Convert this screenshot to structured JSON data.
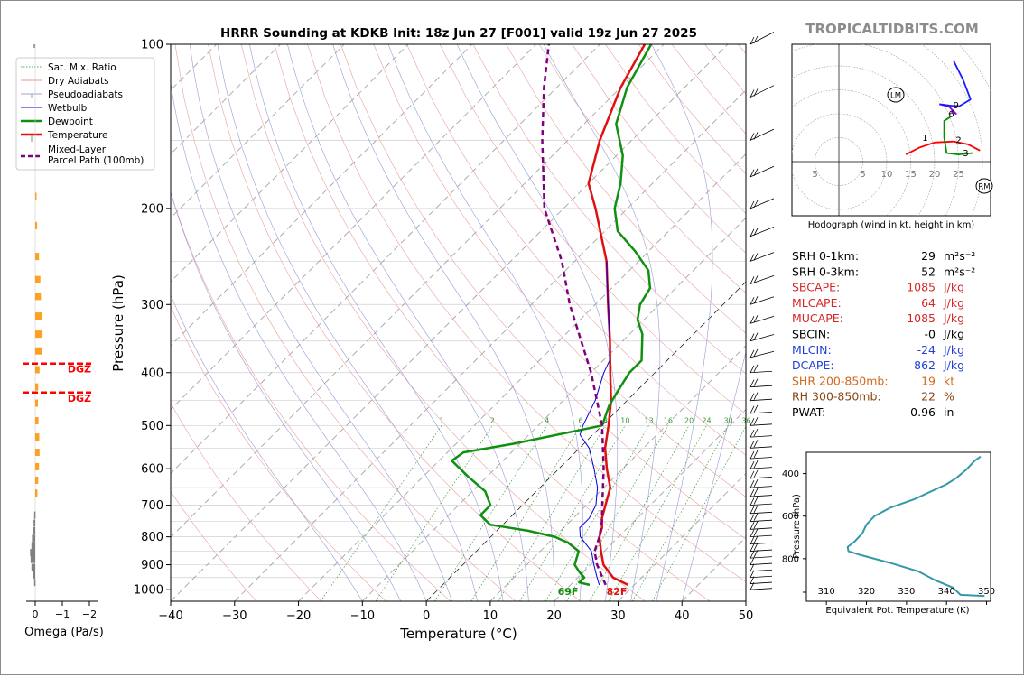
{
  "title": "HRRR Sounding at KDKB Init: 18z Jun 27 [F001] valid 19z Jun 27 2025",
  "watermark": "TROPICALTIDBITS.COM",
  "chart_data": [
    {
      "id": "skewt",
      "type": "line",
      "xlabel": "Temperature (°C)",
      "ylabel": "Pressure (hPa)",
      "xlim": [
        -40,
        50
      ],
      "ylim": [
        1050,
        100
      ],
      "y_scale": "log",
      "skew": true,
      "x_ticks": [
        "−40",
        "−30",
        "−20",
        "−10",
        "0",
        "10",
        "20",
        "30",
        "40",
        "50"
      ],
      "y_ticks": [
        "100",
        "200",
        "300",
        "400",
        "500",
        "600",
        "700",
        "800",
        "900",
        "1000"
      ],
      "legend": {
        "placement": "top-left",
        "entries": [
          {
            "label": "Sat. Mix. Ratio",
            "color": "#2a8a2a",
            "style": "dotted"
          },
          {
            "label": "Dry Adiabats",
            "color": "#e07070",
            "style": "solid"
          },
          {
            "label": "Pseudoadiabats",
            "color": "#8080c0",
            "style": "solid"
          },
          {
            "label": "Wetbulb",
            "color": "#0000e0",
            "style": "solid"
          },
          {
            "label": "Dewpoint",
            "color": "#109010",
            "style": "solid"
          },
          {
            "label": "Temperature",
            "color": "#e01010",
            "style": "solid"
          },
          {
            "label": "Mixed-Layer Parcel Path (100mb)",
            "color": "#800080",
            "style": "dashed"
          }
        ]
      },
      "mixing_ratio_labels": [
        "1",
        "2",
        "4",
        "6",
        "8",
        "10",
        "13",
        "16",
        "20",
        "24",
        "30",
        "36"
      ],
      "surface_labels": {
        "dewpoint": "69F",
        "temperature": "82F"
      },
      "series": [
        {
          "name": "Temperature",
          "color": "#e01010",
          "points": [
            [
              980,
              29
            ],
            [
              950,
              25.5
            ],
            [
              900,
              22
            ],
            [
              850,
              19.5
            ],
            [
              800,
              17
            ],
            [
              770,
              16
            ],
            [
              740,
              14.5
            ],
            [
              700,
              13
            ],
            [
              650,
              11
            ],
            [
              600,
              7.5
            ],
            [
              550,
              4
            ],
            [
              500,
              1
            ],
            [
              450,
              -2.5
            ],
            [
              400,
              -7
            ],
            [
              350,
              -12
            ],
            [
              300,
              -18
            ],
            [
              250,
              -25
            ],
            [
              200,
              -35
            ],
            [
              180,
              -40
            ],
            [
              150,
              -45
            ],
            [
              120,
              -50
            ],
            [
              100,
              -53
            ]
          ]
        },
        {
          "name": "Dewpoint",
          "color": "#109010",
          "points": [
            [
              980,
              23
            ],
            [
              970,
              21
            ],
            [
              950,
              21
            ],
            [
              930,
              19.5
            ],
            [
              900,
              17.5
            ],
            [
              850,
              16
            ],
            [
              820,
              13
            ],
            [
              800,
              10
            ],
            [
              780,
              5
            ],
            [
              760,
              -2
            ],
            [
              730,
              -5
            ],
            [
              700,
              -5
            ],
            [
              660,
              -8
            ],
            [
              620,
              -13
            ],
            [
              580,
              -18
            ],
            [
              560,
              -17.5
            ],
            [
              540,
              -11
            ],
            [
              500,
              0
            ],
            [
              460,
              -2
            ],
            [
              430,
              -3
            ],
            [
              400,
              -4
            ],
            [
              380,
              -4
            ],
            [
              340,
              -8
            ],
            [
              320,
              -11
            ],
            [
              300,
              -13
            ],
            [
              280,
              -14
            ],
            [
              260,
              -17
            ],
            [
              240,
              -22
            ],
            [
              220,
              -28
            ],
            [
              200,
              -32
            ],
            [
              180,
              -35
            ],
            [
              160,
              -39
            ],
            [
              140,
              -45
            ],
            [
              120,
              -49
            ],
            [
              100,
              -52
            ]
          ]
        },
        {
          "name": "Wetbulb",
          "color": "#0000e0",
          "points": [
            [
              980,
              24.5
            ],
            [
              950,
              23
            ],
            [
              900,
              20.5
            ],
            [
              850,
              18
            ],
            [
              800,
              14
            ],
            [
              770,
              12.5
            ],
            [
              740,
              12.5
            ],
            [
              700,
              11.5
            ],
            [
              650,
              9
            ],
            [
              600,
              5.5
            ],
            [
              550,
              1.5
            ],
            [
              520,
              -2
            ],
            [
              500,
              -3
            ],
            [
              450,
              -5
            ],
            [
              400,
              -8
            ],
            [
              380,
              -9
            ],
            [
              350,
              -12
            ],
            [
              300,
              -18
            ],
            [
              250,
              -25
            ]
          ]
        },
        {
          "name": "Mixed-Layer Parcel Path (100mb)",
          "color": "#800080",
          "style": "dashed",
          "points": [
            [
              980,
              25.5
            ],
            [
              900,
              21
            ],
            [
              850,
              18.5
            ],
            [
              800,
              17
            ],
            [
              750,
              15
            ],
            [
              700,
              12.5
            ],
            [
              600,
              7
            ],
            [
              500,
              0
            ],
            [
              400,
              -10
            ],
            [
              300,
              -24
            ],
            [
              250,
              -32
            ],
            [
              200,
              -43
            ],
            [
              150,
              -54
            ],
            [
              120,
              -62
            ],
            [
              100,
              -68
            ]
          ]
        }
      ]
    },
    {
      "id": "omega",
      "type": "bar",
      "xlabel": "Omega (Pa/s)",
      "x_ticks": [
        "0",
        "−1",
        "−2"
      ],
      "dgz_label": "DGZ",
      "dgz_pressures": [
        385,
        435
      ],
      "bars": [
        {
          "p": 190,
          "v": -0.05,
          "c": "#ffa020"
        },
        {
          "p": 215,
          "v": -0.07,
          "c": "#ffa020"
        },
        {
          "p": 245,
          "v": -0.14,
          "c": "#ffa020"
        },
        {
          "p": 270,
          "v": -0.19,
          "c": "#ffa020"
        },
        {
          "p": 290,
          "v": -0.21,
          "c": "#ffa020"
        },
        {
          "p": 315,
          "v": -0.26,
          "c": "#ffa020"
        },
        {
          "p": 340,
          "v": -0.27,
          "c": "#ffa020"
        },
        {
          "p": 365,
          "v": -0.24,
          "c": "#ffa020"
        },
        {
          "p": 395,
          "v": -0.16,
          "c": "#ffa020"
        },
        {
          "p": 425,
          "v": -0.11,
          "c": "#ffa020"
        },
        {
          "p": 455,
          "v": -0.1,
          "c": "#ffa020"
        },
        {
          "p": 490,
          "v": -0.12,
          "c": "#ffa020"
        },
        {
          "p": 525,
          "v": -0.15,
          "c": "#ffa020"
        },
        {
          "p": 560,
          "v": -0.16,
          "c": "#ffa020"
        },
        {
          "p": 595,
          "v": -0.14,
          "c": "#ffa020"
        },
        {
          "p": 630,
          "v": -0.11,
          "c": "#ffa020"
        },
        {
          "p": 665,
          "v": -0.08,
          "c": "#ffa020"
        },
        {
          "p": 730,
          "v": 0.04,
          "c": "#808080"
        },
        {
          "p": 755,
          "v": 0.06,
          "c": "#808080"
        },
        {
          "p": 780,
          "v": 0.08,
          "c": "#808080"
        },
        {
          "p": 805,
          "v": 0.12,
          "c": "#808080"
        },
        {
          "p": 830,
          "v": 0.14,
          "c": "#808080"
        },
        {
          "p": 855,
          "v": 0.19,
          "c": "#808080"
        },
        {
          "p": 880,
          "v": 0.17,
          "c": "#808080"
        },
        {
          "p": 910,
          "v": 0.14,
          "c": "#808080"
        },
        {
          "p": 940,
          "v": 0.1,
          "c": "#808080"
        },
        {
          "p": 970,
          "v": 0.04,
          "c": "#808080"
        }
      ]
    },
    {
      "id": "hodograph",
      "type": "line",
      "xlabel": "Hodograph (wind in kt, height in km)",
      "ring_labels": [
        "5",
        "5",
        "10",
        "15",
        "20",
        "25"
      ],
      "markers": {
        "left_mover": "LM",
        "right_mover": "RM"
      },
      "height_labels": [
        "1",
        "2",
        "3",
        "6",
        "9"
      ],
      "series": [
        {
          "name": "0-1 km",
          "color": "#ff0000",
          "points": [
            [
              14,
              1.5
            ],
            [
              17,
              3
            ],
            [
              20,
              4
            ],
            [
              24,
              4.2
            ]
          ]
        },
        {
          "name": "1-3 km",
          "color": "#ff0000",
          "points": [
            [
              24,
              4.2
            ],
            [
              27,
              3.6
            ],
            [
              29.5,
              2.3
            ]
          ]
        },
        {
          "name": "3-6 km",
          "color": "#009000",
          "points": [
            [
              28,
              1.8
            ],
            [
              25,
              1.5
            ],
            [
              22.5,
              1.8
            ],
            [
              22,
              5
            ],
            [
              22,
              8.5
            ],
            [
              23.5,
              9.5
            ]
          ]
        },
        {
          "name": "6-9 km",
          "color": "#9000d0",
          "points": [
            [
              23.5,
              10.5
            ],
            [
              24.5,
              10
            ],
            [
              23,
              11.5
            ],
            [
              21,
              12
            ]
          ]
        },
        {
          "name": "9+ km",
          "color": "#1a1aff",
          "points": [
            [
              21,
              12
            ],
            [
              25,
              11.5
            ],
            [
              27.5,
              13
            ],
            [
              26,
              17
            ],
            [
              24,
              21
            ]
          ]
        }
      ]
    },
    {
      "id": "theta_e",
      "type": "line",
      "xlabel": "Equivalent Pot. Temperature (K)",
      "ylabel": "Pressure (hPa)",
      "x_ticks": [
        "310",
        "320",
        "330",
        "340",
        "350"
      ],
      "y_ticks": [
        "400",
        "600",
        "800"
      ],
      "xlim": [
        305,
        351
      ],
      "ylim": [
        1000,
        300
      ],
      "series": [
        {
          "name": "theta-e",
          "color": "#3399aa",
          "points": [
            [
              349.5,
              975
            ],
            [
              347,
              973
            ],
            [
              343.5,
              970
            ],
            [
              341.5,
              935
            ],
            [
              337,
              900
            ],
            [
              333,
              860
            ],
            [
              326,
              820
            ],
            [
              318,
              780
            ],
            [
              315.5,
              765
            ],
            [
              315.3,
              745
            ],
            [
              317,
              720
            ],
            [
              319,
              680
            ],
            [
              320,
              640
            ],
            [
              322,
              600
            ],
            [
              326,
              560
            ],
            [
              332,
              520
            ],
            [
              340,
              450
            ],
            [
              342.5,
              420
            ],
            [
              345,
              380
            ],
            [
              347,
              340
            ],
            [
              348.5,
              320
            ]
          ]
        }
      ]
    }
  ],
  "indices": [
    {
      "label": "SRH 0-1km:",
      "value": "29",
      "unit": "m²s⁻²",
      "color": "#000000"
    },
    {
      "label": "SRH 0-3km:",
      "value": "52",
      "unit": "m²s⁻²",
      "color": "#000000"
    },
    {
      "label": "SBCAPE:",
      "value": "1085",
      "unit": "J/kg",
      "color": "#d62728"
    },
    {
      "label": "MLCAPE:",
      "value": "64",
      "unit": "J/kg",
      "color": "#d62728"
    },
    {
      "label": "MUCAPE:",
      "value": "1085",
      "unit": "J/kg",
      "color": "#d62728"
    },
    {
      "label": "SBCIN:",
      "value": "-0",
      "unit": "J/kg",
      "color": "#000000"
    },
    {
      "label": "MLCIN:",
      "value": "-24",
      "unit": "J/kg",
      "color": "#1f3fd8"
    },
    {
      "label": "DCAPE:",
      "value": "862",
      "unit": "J/kg",
      "color": "#1f3fd8"
    },
    {
      "label": "SHR 200-850mb:",
      "value": "19",
      "unit": "kt",
      "color": "#d2691e"
    },
    {
      "label": "RH 300-850mb:",
      "value": "22",
      "unit": "%",
      "color": "#8b4513"
    },
    {
      "label": "PWAT:",
      "value": "0.96",
      "unit": "in",
      "color": "#000000"
    }
  ]
}
